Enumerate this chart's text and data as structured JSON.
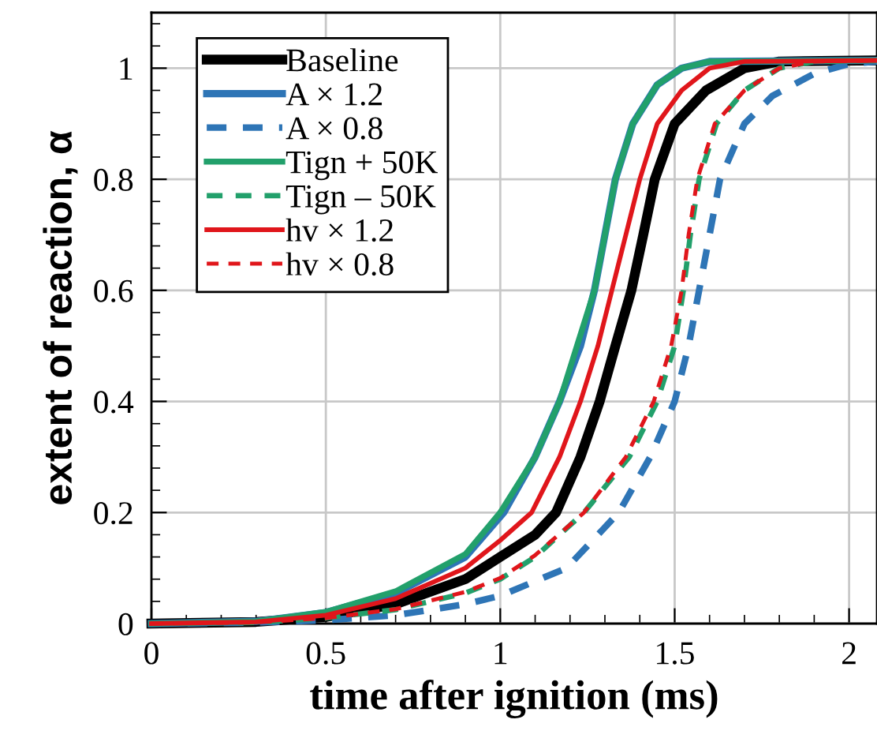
{
  "chart_data": {
    "type": "line",
    "xlabel": "time after ignition (ms)",
    "ylabel": "extent of reaction, α",
    "xlim": [
      0,
      2.08
    ],
    "ylim": [
      0,
      1.1
    ],
    "xticks": [
      0,
      0.5,
      1,
      1.5,
      2
    ],
    "yticks": [
      0,
      0.2,
      0.4,
      0.6,
      0.8,
      1
    ],
    "grid": true,
    "legend": "top left",
    "marker": "none",
    "series": [
      {
        "name": "Baseline",
        "color": "#000000",
        "line_style": "solid",
        "x": [
          0,
          0.3,
          0.5,
          0.7,
          0.9,
          1.0,
          1.1,
          1.16,
          1.23,
          1.285,
          1.33,
          1.376,
          1.41,
          1.443,
          1.5,
          1.59,
          1.7,
          1.8,
          2.08
        ],
        "values": [
          0,
          0.003,
          0.012,
          0.035,
          0.08,
          0.12,
          0.16,
          0.2,
          0.3,
          0.4,
          0.5,
          0.6,
          0.7,
          0.8,
          0.9,
          0.96,
          1.0,
          1.012,
          1.014
        ]
      },
      {
        "name": "A × 1.2",
        "color": "#2e75b6",
        "line_style": "solid",
        "x": [
          0,
          0.3,
          0.5,
          0.7,
          0.9,
          1.01,
          1.1,
          1.17,
          1.23,
          1.27,
          1.3,
          1.33,
          1.38,
          1.45,
          1.52,
          1.6,
          2.08
        ],
        "values": [
          0,
          0.004,
          0.02,
          0.055,
          0.12,
          0.2,
          0.3,
          0.4,
          0.5,
          0.6,
          0.7,
          0.8,
          0.9,
          0.97,
          1.0,
          1.012,
          1.014
        ]
      },
      {
        "name": "A × 0.8",
        "color": "#2e75b6",
        "line_style": "dashed",
        "x": [
          0,
          0.3,
          0.5,
          0.7,
          0.9,
          1.0,
          1.19,
          1.34,
          1.43,
          1.5,
          1.54,
          1.57,
          1.6,
          1.63,
          1.7,
          1.78,
          1.9,
          2.0,
          2.08
        ],
        "values": [
          0,
          0.002,
          0.006,
          0.015,
          0.035,
          0.05,
          0.1,
          0.2,
          0.3,
          0.4,
          0.5,
          0.6,
          0.7,
          0.8,
          0.9,
          0.95,
          0.99,
          1.008,
          1.012
        ]
      },
      {
        "name": "Tign + 50K",
        "color": "#22a06b",
        "line_style": "solid",
        "x": [
          0,
          0.3,
          0.5,
          0.7,
          0.9,
          1.0,
          1.1,
          1.17,
          1.22,
          1.27,
          1.3,
          1.33,
          1.38,
          1.45,
          1.52,
          1.6,
          2.08
        ],
        "values": [
          0,
          0.004,
          0.021,
          0.058,
          0.125,
          0.2,
          0.3,
          0.4,
          0.5,
          0.6,
          0.7,
          0.8,
          0.9,
          0.97,
          1.0,
          1.012,
          1.014
        ]
      },
      {
        "name": "Tign – 50K",
        "color": "#22a06b",
        "line_style": "dashed",
        "x": [
          0,
          0.3,
          0.5,
          0.7,
          0.9,
          1.0,
          1.1,
          1.24,
          1.37,
          1.45,
          1.5,
          1.525,
          1.545,
          1.57,
          1.62,
          1.7,
          1.8,
          1.9,
          2.08
        ],
        "values": [
          0,
          0.002,
          0.01,
          0.025,
          0.055,
          0.08,
          0.12,
          0.2,
          0.3,
          0.4,
          0.5,
          0.6,
          0.7,
          0.8,
          0.9,
          0.96,
          1.0,
          1.012,
          1.014
        ]
      },
      {
        "name": "hv × 1.2",
        "color": "#e0161b",
        "line_style": "solid",
        "x": [
          0,
          0.3,
          0.5,
          0.7,
          0.9,
          1.0,
          1.09,
          1.17,
          1.23,
          1.28,
          1.32,
          1.36,
          1.4,
          1.45,
          1.52,
          1.6,
          1.7,
          2.08
        ],
        "values": [
          0,
          0.003,
          0.015,
          0.045,
          0.1,
          0.15,
          0.2,
          0.3,
          0.4,
          0.5,
          0.6,
          0.7,
          0.8,
          0.9,
          0.96,
          1.0,
          1.012,
          1.014
        ]
      },
      {
        "name": "hv × 0.8",
        "color": "#e0161b",
        "line_style": "dashed",
        "x": [
          0,
          0.3,
          0.5,
          0.7,
          0.9,
          1.0,
          1.1,
          1.24,
          1.36,
          1.44,
          1.49,
          1.52,
          1.54,
          1.565,
          1.615,
          1.7,
          1.8,
          1.9,
          2.08
        ],
        "values": [
          0,
          0.002,
          0.01,
          0.026,
          0.057,
          0.082,
          0.123,
          0.2,
          0.3,
          0.4,
          0.5,
          0.6,
          0.7,
          0.8,
          0.9,
          0.96,
          1.0,
          1.012,
          1.014
        ]
      }
    ]
  }
}
